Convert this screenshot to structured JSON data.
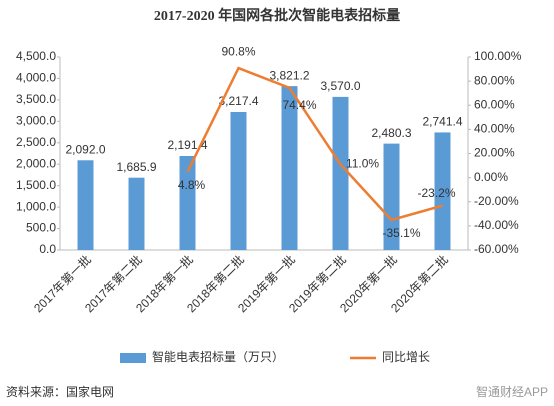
{
  "chart_data": {
    "type": "bar-line",
    "title": "2017-2020 年国网各批次智能电表招标量",
    "categories": [
      "2017年第一批",
      "2017年第二批",
      "2018年第一批",
      "2018年第二批",
      "2019年第一批",
      "2019年第二批",
      "2020年第一批",
      "2020年第二批"
    ],
    "series": [
      {
        "name": "智能电表招标量（万只）",
        "color": "#5b9bd5",
        "type": "bar",
        "values": [
          2092.0,
          1685.9,
          2191.4,
          3217.4,
          3821.2,
          3570.0,
          2480.3,
          2741.4
        ],
        "value_labels": [
          "2,092.0",
          "1,685.9",
          "2,191.4",
          "3,217.4",
          "3,821.2",
          "3,570.0",
          "2,480.3",
          "2,741.4"
        ]
      },
      {
        "name": "同比增长",
        "color": "#ed7d31",
        "type": "line",
        "axis": "y2",
        "values": [
          null,
          null,
          4.8,
          90.8,
          74.4,
          11.0,
          -35.1,
          -23.2
        ],
        "value_labels": [
          null,
          null,
          "4.8%",
          "90.8%",
          "74.4%",
          "11.0%",
          "-35.1%",
          "-23.2%"
        ]
      }
    ],
    "ylim": [
      0,
      4500
    ],
    "yticks": [
      {
        "value": 0,
        "label": "0.0"
      },
      {
        "value": 500,
        "label": "500.0"
      },
      {
        "value": 1000,
        "label": "1,000.0"
      },
      {
        "value": 1500,
        "label": "1,500.0"
      },
      {
        "value": 2000,
        "label": "2,000.0"
      },
      {
        "value": 2500,
        "label": "2,500.0"
      },
      {
        "value": 3000,
        "label": "3,000.0"
      },
      {
        "value": 3500,
        "label": "3,500.0"
      },
      {
        "value": 4000,
        "label": "4,000.0"
      },
      {
        "value": 4500,
        "label": "4,500.0"
      }
    ],
    "y2lim": [
      -60,
      100
    ],
    "y2ticks": [
      {
        "value": -60,
        "label": "-60.00%"
      },
      {
        "value": -40,
        "label": "-40.00%"
      },
      {
        "value": -20,
        "label": "-20.00%"
      },
      {
        "value": 0,
        "label": "0.00%"
      },
      {
        "value": 20,
        "label": "20.00%"
      },
      {
        "value": 40,
        "label": "40.00%"
      },
      {
        "value": 60,
        "label": "60.00%"
      },
      {
        "value": 80,
        "label": "80.00%"
      },
      {
        "value": 100,
        "label": "100.00%"
      }
    ],
    "source": "资料来源：国家电网",
    "watermark": "智通财经APP"
  }
}
